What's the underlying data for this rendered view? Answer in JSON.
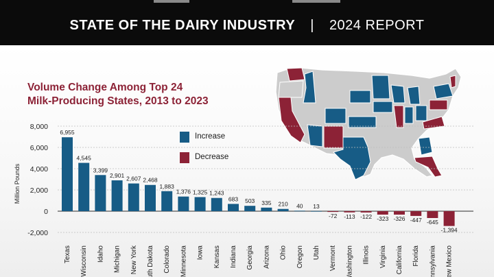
{
  "header": {
    "title": "STATE OF THE DAIRY INDUSTRY",
    "separator": "|",
    "report": "2024 REPORT"
  },
  "colors": {
    "increase": "#175c86",
    "decrease": "#8c2236",
    "title": "#8c2236",
    "banner": "#0b0b0b",
    "neutral_state": "#cccccc"
  },
  "chart_data": {
    "type": "bar",
    "title": "Volume Change Among Top 24 Milk-Producing States, 2013 to 2023",
    "title_lines": [
      "Volume Change Among Top 24",
      "Milk-Producing States, 2013 to 2023"
    ],
    "ylabel": "Million Pounds",
    "ylim": [
      -2000,
      8000
    ],
    "yticks": [
      8000,
      6000,
      4000,
      2000,
      0,
      -2000
    ],
    "ytick_labels": [
      "8,000",
      "6,000",
      "4,000",
      "2,000",
      "0",
      "-2,000"
    ],
    "categories": [
      "Texas",
      "Wisconsin",
      "Idaho",
      "Michigan",
      "New York",
      "South Dakota",
      "Colorado",
      "Minnesota",
      "Iowa",
      "Kansas",
      "Indiana",
      "Georgia",
      "Arizona",
      "Ohio",
      "Oregon",
      "Utah",
      "Vermont",
      "Washington",
      "Illinois",
      "Virginia",
      "California",
      "Florida",
      "Pennsylvania",
      "New Mexico"
    ],
    "values": [
      6955,
      4545,
      3399,
      2901,
      2607,
      2468,
      1883,
      1376,
      1325,
      1243,
      683,
      503,
      335,
      210,
      40,
      13,
      -72,
      -113,
      -122,
      -323,
      -326,
      -447,
      -645,
      -1394
    ],
    "value_labels": [
      "6,955",
      "4,545",
      "3,399",
      "2,901",
      "2,607",
      "2,468",
      "1,883",
      "1,376",
      "1,325",
      "1,243",
      "683",
      "503",
      "335",
      "210",
      "40",
      "13",
      "-72",
      "-113",
      "-122",
      "-323",
      "-326",
      "-447",
      "-645",
      "-1,394"
    ],
    "legend": {
      "placement": "center",
      "items": [
        {
          "label": "Increase",
          "color": "#175c86"
        },
        {
          "label": "Decrease",
          "color": "#8c2236"
        }
      ]
    },
    "grid": true
  }
}
